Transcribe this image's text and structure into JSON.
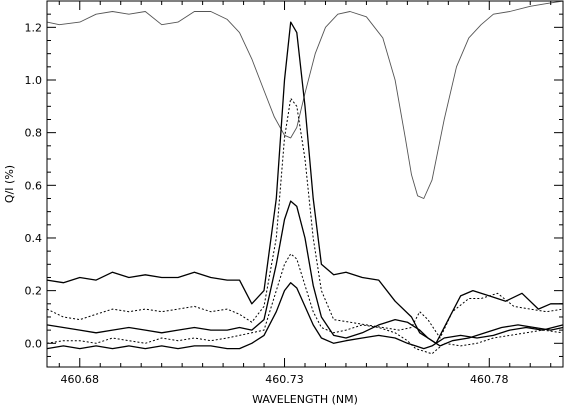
{
  "chart_data": {
    "type": "line",
    "title": "",
    "xlabel": "WAVELENGTH (NM)",
    "ylabel": "Q/I (%)",
    "xlim": [
      460.672,
      460.798
    ],
    "ylim": [
      -0.09,
      1.3
    ],
    "x_ticks": [
      460.68,
      460.73,
      460.78
    ],
    "x_tick_labels": [
      "460.68",
      "460.73",
      "460.78"
    ],
    "y_ticks": [
      0.0,
      0.2,
      0.4,
      0.6,
      0.8,
      1.0,
      1.2
    ],
    "y_tick_labels": [
      "0.0",
      "0.2",
      "0.4",
      "0.6",
      "0.8",
      "1.0",
      "1.2"
    ],
    "grid": false,
    "series": [
      {
        "style": "thin-solid",
        "color": "#555555",
        "x": [
          460.672,
          460.675,
          460.68,
          460.684,
          460.688,
          460.692,
          460.696,
          460.7,
          460.704,
          460.708,
          460.712,
          460.716,
          460.719,
          460.722,
          460.725,
          460.7275,
          460.73,
          460.7315,
          460.733,
          460.735,
          460.7375,
          460.74,
          460.743,
          460.746,
          460.75,
          460.754,
          460.757,
          460.7595,
          460.761,
          460.7625,
          460.764,
          460.766,
          460.769,
          460.772,
          460.775,
          460.778,
          460.781,
          460.785,
          460.79,
          460.794,
          460.798
        ],
        "y": [
          1.22,
          1.21,
          1.22,
          1.25,
          1.26,
          1.25,
          1.26,
          1.21,
          1.22,
          1.26,
          1.26,
          1.23,
          1.18,
          1.08,
          0.96,
          0.86,
          0.79,
          0.78,
          0.82,
          0.95,
          1.1,
          1.2,
          1.25,
          1.26,
          1.24,
          1.16,
          1.0,
          0.78,
          0.64,
          0.56,
          0.55,
          0.62,
          0.85,
          1.05,
          1.16,
          1.21,
          1.25,
          1.26,
          1.28,
          1.29,
          1.3
        ]
      },
      {
        "style": "solid",
        "color": "#000000",
        "x": [
          460.672,
          460.676,
          460.68,
          460.684,
          460.688,
          460.692,
          460.696,
          460.7,
          460.704,
          460.708,
          460.712,
          460.716,
          460.719,
          460.722,
          460.725,
          460.728,
          460.73,
          460.7315,
          460.733,
          460.735,
          460.737,
          460.739,
          460.742,
          460.745,
          460.749,
          460.753,
          460.757,
          460.761,
          460.763,
          460.765,
          460.767,
          460.77,
          460.773,
          460.776,
          460.78,
          460.784,
          460.788,
          460.792,
          460.795,
          460.798
        ],
        "y": [
          0.24,
          0.23,
          0.25,
          0.24,
          0.27,
          0.25,
          0.26,
          0.25,
          0.25,
          0.27,
          0.25,
          0.24,
          0.24,
          0.15,
          0.2,
          0.55,
          1.0,
          1.22,
          1.18,
          0.9,
          0.55,
          0.3,
          0.26,
          0.27,
          0.25,
          0.24,
          0.16,
          0.1,
          0.04,
          0.02,
          0.0,
          0.09,
          0.18,
          0.2,
          0.18,
          0.16,
          0.19,
          0.13,
          0.15,
          0.15
        ]
      },
      {
        "style": "dotted",
        "color": "#000000",
        "x": [
          460.672,
          460.676,
          460.68,
          460.684,
          460.688,
          460.692,
          460.696,
          460.7,
          460.704,
          460.708,
          460.712,
          460.716,
          460.719,
          460.722,
          460.725,
          460.728,
          460.73,
          460.7315,
          460.733,
          460.735,
          460.737,
          460.739,
          460.742,
          460.746,
          460.75,
          460.754,
          460.758,
          460.761,
          460.763,
          460.765,
          460.768,
          460.771,
          460.775,
          460.778,
          460.782,
          460.786,
          460.79,
          460.794,
          460.798
        ],
        "y": [
          0.13,
          0.1,
          0.09,
          0.11,
          0.13,
          0.12,
          0.13,
          0.12,
          0.13,
          0.14,
          0.12,
          0.13,
          0.11,
          0.08,
          0.14,
          0.4,
          0.78,
          0.93,
          0.9,
          0.7,
          0.4,
          0.2,
          0.09,
          0.08,
          0.07,
          0.06,
          0.05,
          0.06,
          0.12,
          0.09,
          0.02,
          0.12,
          0.17,
          0.17,
          0.19,
          0.14,
          0.13,
          0.12,
          0.13
        ]
      },
      {
        "style": "solid",
        "color": "#000000",
        "x": [
          460.672,
          460.676,
          460.68,
          460.684,
          460.688,
          460.692,
          460.696,
          460.7,
          460.704,
          460.708,
          460.712,
          460.716,
          460.719,
          460.722,
          460.725,
          460.728,
          460.73,
          460.7315,
          460.733,
          460.735,
          460.737,
          460.739,
          460.742,
          460.745,
          460.749,
          460.753,
          460.757,
          460.76,
          460.763,
          460.765,
          460.768,
          460.771,
          460.775,
          460.779,
          460.783,
          460.787,
          460.791,
          460.795,
          460.798
        ],
        "y": [
          0.07,
          0.06,
          0.05,
          0.04,
          0.05,
          0.06,
          0.05,
          0.04,
          0.05,
          0.06,
          0.05,
          0.05,
          0.06,
          0.05,
          0.09,
          0.3,
          0.47,
          0.54,
          0.52,
          0.4,
          0.22,
          0.1,
          0.03,
          0.02,
          0.04,
          0.07,
          0.09,
          0.08,
          0.05,
          0.02,
          -0.01,
          0.01,
          0.02,
          0.04,
          0.06,
          0.07,
          0.06,
          0.05,
          0.06
        ]
      },
      {
        "style": "dotted",
        "color": "#000000",
        "x": [
          460.672,
          460.676,
          460.68,
          460.684,
          460.688,
          460.692,
          460.696,
          460.7,
          460.704,
          460.708,
          460.712,
          460.716,
          460.719,
          460.722,
          460.725,
          460.728,
          460.73,
          460.7315,
          460.733,
          460.735,
          460.737,
          460.739,
          460.742,
          460.745,
          460.749,
          460.753,
          460.757,
          460.76,
          460.762,
          460.764,
          460.766,
          460.769,
          460.773,
          460.777,
          460.781,
          460.785,
          460.789,
          460.793,
          460.798
        ],
        "y": [
          0.0,
          0.01,
          0.01,
          0.0,
          0.02,
          0.01,
          0.0,
          0.02,
          0.01,
          0.02,
          0.01,
          0.02,
          0.03,
          0.04,
          0.05,
          0.2,
          0.3,
          0.34,
          0.32,
          0.22,
          0.12,
          0.06,
          0.04,
          0.05,
          0.07,
          0.06,
          0.04,
          0.01,
          -0.02,
          -0.03,
          -0.04,
          0.0,
          -0.01,
          0.0,
          0.02,
          0.03,
          0.04,
          0.05,
          0.04
        ]
      },
      {
        "style": "solid",
        "color": "#000000",
        "x": [
          460.672,
          460.676,
          460.68,
          460.684,
          460.688,
          460.692,
          460.696,
          460.7,
          460.704,
          460.708,
          460.712,
          460.716,
          460.719,
          460.722,
          460.725,
          460.728,
          460.73,
          460.7315,
          460.733,
          460.735,
          460.737,
          460.739,
          460.742,
          460.745,
          460.749,
          460.753,
          460.757,
          460.76,
          460.762,
          460.764,
          460.766,
          460.769,
          460.773,
          460.777,
          460.781,
          460.785,
          460.789,
          460.793,
          460.798
        ],
        "y": [
          -0.02,
          -0.01,
          -0.02,
          -0.01,
          -0.02,
          -0.01,
          -0.02,
          -0.01,
          -0.02,
          -0.01,
          -0.01,
          -0.02,
          -0.02,
          0.0,
          0.03,
          0.12,
          0.2,
          0.23,
          0.21,
          0.14,
          0.07,
          0.02,
          0.0,
          0.01,
          0.02,
          0.03,
          0.02,
          0.0,
          -0.01,
          -0.02,
          -0.01,
          0.02,
          0.03,
          0.02,
          0.03,
          0.05,
          0.06,
          0.05,
          0.07
        ]
      }
    ]
  }
}
